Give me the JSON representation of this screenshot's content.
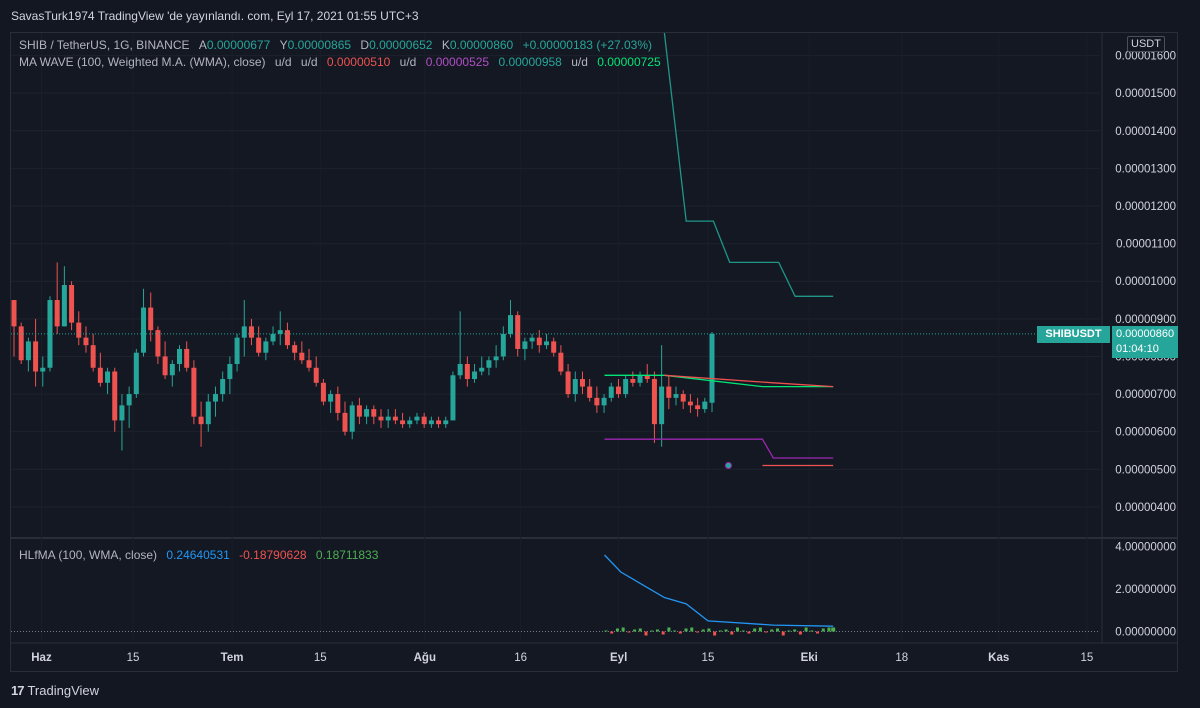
{
  "header": {
    "published": "SavasTurk1974 TradingView 'de yayınlandı. com, Eyl 17, 2021 01:55 UTC+3"
  },
  "legend_main": {
    "symbol": "SHIB / TetherUS, 1G, BINANCE",
    "o_label": "A",
    "o_value": "0.00000677",
    "h_label": "Y",
    "h_value": "0.00000865",
    "l_label": "D",
    "l_value": "0.00000652",
    "c_label": "K",
    "c_value": "0.00000860",
    "change": "+0.00000183 (+27.03%)"
  },
  "legend_ma": {
    "name": "MA WAVE (100, Weighted M.A. (WMA), close)",
    "ud1": "u/d",
    "ud2": "u/d",
    "v1": "0.00000510",
    "ud3": "u/d",
    "v2": "0.00000525",
    "v3": "0.00000958",
    "ud4": "u/d",
    "v4": "0.00000725"
  },
  "legend_hl": {
    "name": "HLfMA (100, WMA, close)",
    "v1": "0.24640531",
    "v2": "-0.18790628",
    "v3": "0.18711833"
  },
  "price_axis": {
    "currency": "USDT",
    "ticks": [
      "0.00001600",
      "0.00001500",
      "0.00001400",
      "0.00001300",
      "0.00001200",
      "0.00001100",
      "0.00001000",
      "0.00000900",
      "0.00000800",
      "0.00000700",
      "0.00000600",
      "0.00000500",
      "0.00000400"
    ]
  },
  "osc_axis": {
    "ticks": [
      "4.00000000",
      "2.00000000",
      "0.00000000"
    ]
  },
  "time_axis": {
    "ticks": [
      "Haz",
      "15",
      "Tem",
      "15",
      "Ağu",
      "16",
      "Eyl",
      "15",
      "Eki",
      "18",
      "Kas",
      "15"
    ]
  },
  "price_tag": {
    "symbol": "SHIBUSDT",
    "price": "0.00000860",
    "countdown": "01:04:10"
  },
  "footer": {
    "brand": "TradingView"
  },
  "colors": {
    "up": "#26a69a",
    "down": "#ef5350",
    "purple": "#9c27b0",
    "teal_line": "#1e9688",
    "green_line": "#00e676",
    "red_line": "#ef5350",
    "blue_line": "#2196f3"
  },
  "chart_data": {
    "type": "candlestick",
    "title": "SHIB / TetherUS, 1G, BINANCE",
    "ylim": [
      3.2e-06,
      1.66e-05
    ],
    "candles": [
      {
        "o": 9.5e-06,
        "h": 9.5e-06,
        "l": 8e-06,
        "c": 8.8e-06
      },
      {
        "o": 8.8e-06,
        "h": 8.9e-06,
        "l": 7.8e-06,
        "c": 7.9e-06
      },
      {
        "o": 7.9e-06,
        "h": 8.5e-06,
        "l": 7.6e-06,
        "c": 8.4e-06
      },
      {
        "o": 8.4e-06,
        "h": 9e-06,
        "l": 7.2e-06,
        "c": 7.6e-06
      },
      {
        "o": 7.6e-06,
        "h": 8e-06,
        "l": 7.2e-06,
        "c": 7.7e-06
      },
      {
        "o": 7.7e-06,
        "h": 9.6e-06,
        "l": 7.6e-06,
        "c": 9.5e-06
      },
      {
        "o": 9.5e-06,
        "h": 1.05e-05,
        "l": 8.6e-06,
        "c": 8.8e-06
      },
      {
        "o": 8.8e-06,
        "h": 1.04e-05,
        "l": 8.8e-06,
        "c": 9.9e-06
      },
      {
        "o": 9.9e-06,
        "h": 1e-05,
        "l": 8.7e-06,
        "c": 8.9e-06
      },
      {
        "o": 8.9e-06,
        "h": 9.2e-06,
        "l": 8.3e-06,
        "c": 8.5e-06
      },
      {
        "o": 8.5e-06,
        "h": 8.8e-06,
        "l": 8.1e-06,
        "c": 8.3e-06
      },
      {
        "o": 8.3e-06,
        "h": 8.6e-06,
        "l": 7.6e-06,
        "c": 7.7e-06
      },
      {
        "o": 7.7e-06,
        "h": 8.1e-06,
        "l": 7.2e-06,
        "c": 7.3e-06
      },
      {
        "o": 7.3e-06,
        "h": 7.7e-06,
        "l": 7e-06,
        "c": 7.6e-06
      },
      {
        "o": 7.6e-06,
        "h": 7.7e-06,
        "l": 6e-06,
        "c": 6.3e-06
      },
      {
        "o": 6.3e-06,
        "h": 7e-06,
        "l": 5.5e-06,
        "c": 6.7e-06
      },
      {
        "o": 6.7e-06,
        "h": 7.2e-06,
        "l": 6.1e-06,
        "c": 7e-06
      },
      {
        "o": 7e-06,
        "h": 8.2e-06,
        "l": 6.9e-06,
        "c": 8.1e-06
      },
      {
        "o": 8.1e-06,
        "h": 9.8e-06,
        "l": 8e-06,
        "c": 9.3e-06
      },
      {
        "o": 9.3e-06,
        "h": 9.7e-06,
        "l": 8.4e-06,
        "c": 8.7e-06
      },
      {
        "o": 8.7e-06,
        "h": 8.8e-06,
        "l": 7.8e-06,
        "c": 8e-06
      },
      {
        "o": 8e-06,
        "h": 8.4e-06,
        "l": 7.4e-06,
        "c": 7.5e-06
      },
      {
        "o": 7.5e-06,
        "h": 7.9e-06,
        "l": 7.2e-06,
        "c": 7.8e-06
      },
      {
        "o": 7.8e-06,
        "h": 8.3e-06,
        "l": 7.6e-06,
        "c": 8.2e-06
      },
      {
        "o": 8.2e-06,
        "h": 8.4e-06,
        "l": 7.6e-06,
        "c": 7.7e-06
      },
      {
        "o": 7.7e-06,
        "h": 7.9e-06,
        "l": 6.2e-06,
        "c": 6.4e-06
      },
      {
        "o": 6.4e-06,
        "h": 6.8e-06,
        "l": 5.6e-06,
        "c": 6.2e-06
      },
      {
        "o": 6.2e-06,
        "h": 7e-06,
        "l": 6e-06,
        "c": 6.8e-06
      },
      {
        "o": 6.8e-06,
        "h": 7.2e-06,
        "l": 6.4e-06,
        "c": 7e-06
      },
      {
        "o": 7e-06,
        "h": 7.6e-06,
        "l": 6.8e-06,
        "c": 7.4e-06
      },
      {
        "o": 7.4e-06,
        "h": 8e-06,
        "l": 7e-06,
        "c": 7.8e-06
      },
      {
        "o": 7.8e-06,
        "h": 8.6e-06,
        "l": 7.6e-06,
        "c": 8.5e-06
      },
      {
        "o": 8.5e-06,
        "h": 9.5e-06,
        "l": 8e-06,
        "c": 8.8e-06
      },
      {
        "o": 8.8e-06,
        "h": 9e-06,
        "l": 8.3e-06,
        "c": 8.5e-06
      },
      {
        "o": 8.5e-06,
        "h": 8.8e-06,
        "l": 8e-06,
        "c": 8.1e-06
      },
      {
        "o": 8.1e-06,
        "h": 8.5e-06,
        "l": 7.9e-06,
        "c": 8.4e-06
      },
      {
        "o": 8.4e-06,
        "h": 8.8e-06,
        "l": 8.3e-06,
        "c": 8.6e-06
      },
      {
        "o": 8.6e-06,
        "h": 9.2e-06,
        "l": 8.3e-06,
        "c": 8.7e-06
      },
      {
        "o": 8.7e-06,
        "h": 8.9e-06,
        "l": 8.2e-06,
        "c": 8.3e-06
      },
      {
        "o": 8.3e-06,
        "h": 8.4e-06,
        "l": 7.9e-06,
        "c": 8.1e-06
      },
      {
        "o": 8.1e-06,
        "h": 8.4e-06,
        "l": 7.8e-06,
        "c": 7.9e-06
      },
      {
        "o": 7.9e-06,
        "h": 8.2e-06,
        "l": 7.6e-06,
        "c": 7.7e-06
      },
      {
        "o": 7.7e-06,
        "h": 8e-06,
        "l": 7.2e-06,
        "c": 7.3e-06
      },
      {
        "o": 7.3e-06,
        "h": 7.4e-06,
        "l": 6.7e-06,
        "c": 6.8e-06
      },
      {
        "o": 6.8e-06,
        "h": 7.1e-06,
        "l": 6.5e-06,
        "c": 7e-06
      },
      {
        "o": 7e-06,
        "h": 7.2e-06,
        "l": 6.3e-06,
        "c": 6.5e-06
      },
      {
        "o": 6.5e-06,
        "h": 6.8e-06,
        "l": 5.9e-06,
        "c": 6e-06
      },
      {
        "o": 6e-06,
        "h": 6.8e-06,
        "l": 5.8e-06,
        "c": 6.7e-06
      },
      {
        "o": 6.7e-06,
        "h": 6.9e-06,
        "l": 6.2e-06,
        "c": 6.4e-06
      },
      {
        "o": 6.4e-06,
        "h": 6.7e-06,
        "l": 6.2e-06,
        "c": 6.6e-06
      },
      {
        "o": 6.6e-06,
        "h": 6.7e-06,
        "l": 6.2e-06,
        "c": 6.4e-06
      },
      {
        "o": 6.4e-06,
        "h": 6.6e-06,
        "l": 6.1e-06,
        "c": 6.3e-06
      },
      {
        "o": 6.3e-06,
        "h": 6.6e-06,
        "l": 6.1e-06,
        "c": 6.4e-06
      },
      {
        "o": 6.4e-06,
        "h": 6.6e-06,
        "l": 6.2e-06,
        "c": 6.3e-06
      },
      {
        "o": 6.3e-06,
        "h": 6.5e-06,
        "l": 6.1e-06,
        "c": 6.2e-06
      },
      {
        "o": 6.2e-06,
        "h": 6.4e-06,
        "l": 6.1e-06,
        "c": 6.3e-06
      },
      {
        "o": 6.3e-06,
        "h": 6.5e-06,
        "l": 6.2e-06,
        "c": 6.4e-06
      },
      {
        "o": 6.4e-06,
        "h": 6.5e-06,
        "l": 6.1e-06,
        "c": 6.2e-06
      },
      {
        "o": 6.2e-06,
        "h": 6.4e-06,
        "l": 6.1e-06,
        "c": 6.3e-06
      },
      {
        "o": 6.3e-06,
        "h": 6.4e-06,
        "l": 6.1e-06,
        "c": 6.2e-06
      },
      {
        "o": 6.2e-06,
        "h": 6.4e-06,
        "l": 6.1e-06,
        "c": 6.3e-06
      },
      {
        "o": 6.3e-06,
        "h": 7.6e-06,
        "l": 6.3e-06,
        "c": 7.5e-06
      },
      {
        "o": 7.5e-06,
        "h": 9.2e-06,
        "l": 7.4e-06,
        "c": 7.8e-06
      },
      {
        "o": 7.8e-06,
        "h": 8e-06,
        "l": 7.2e-06,
        "c": 7.4e-06
      },
      {
        "o": 7.4e-06,
        "h": 7.8e-06,
        "l": 7.3e-06,
        "c": 7.6e-06
      },
      {
        "o": 7.6e-06,
        "h": 8e-06,
        "l": 7.5e-06,
        "c": 7.7e-06
      },
      {
        "o": 7.7e-06,
        "h": 8e-06,
        "l": 7.5e-06,
        "c": 7.9e-06
      },
      {
        "o": 7.9e-06,
        "h": 8.3e-06,
        "l": 7.7e-06,
        "c": 8e-06
      },
      {
        "o": 8e-06,
        "h": 8.8e-06,
        "l": 7.9e-06,
        "c": 8.6e-06
      },
      {
        "o": 8.6e-06,
        "h": 9.5e-06,
        "l": 8.5e-06,
        "c": 9.1e-06
      },
      {
        "o": 9.1e-06,
        "h": 9.2e-06,
        "l": 8e-06,
        "c": 8.2e-06
      },
      {
        "o": 8.2e-06,
        "h": 8.5e-06,
        "l": 7.9e-06,
        "c": 8.4e-06
      },
      {
        "o": 8.4e-06,
        "h": 8.6e-06,
        "l": 8.2e-06,
        "c": 8.5e-06
      },
      {
        "o": 8.5e-06,
        "h": 8.7e-06,
        "l": 8.1e-06,
        "c": 8.3e-06
      },
      {
        "o": 8.3e-06,
        "h": 8.6e-06,
        "l": 8.2e-06,
        "c": 8.4e-06
      },
      {
        "o": 8.4e-06,
        "h": 8.5e-06,
        "l": 8e-06,
        "c": 8.1e-06
      },
      {
        "o": 8.1e-06,
        "h": 8.3e-06,
        "l": 7.5e-06,
        "c": 7.6e-06
      },
      {
        "o": 7.6e-06,
        "h": 7.8e-06,
        "l": 6.9e-06,
        "c": 7e-06
      },
      {
        "o": 7e-06,
        "h": 7.6e-06,
        "l": 6.8e-06,
        "c": 7.4e-06
      },
      {
        "o": 7.4e-06,
        "h": 7.6e-06,
        "l": 7e-06,
        "c": 7.2e-06
      },
      {
        "o": 7.2e-06,
        "h": 7.4e-06,
        "l": 6.8e-06,
        "c": 6.9e-06
      },
      {
        "o": 6.9e-06,
        "h": 7.2e-06,
        "l": 6.5e-06,
        "c": 6.7e-06
      },
      {
        "o": 6.7e-06,
        "h": 7e-06,
        "l": 6.5e-06,
        "c": 6.9e-06
      },
      {
        "o": 6.9e-06,
        "h": 7.3e-06,
        "l": 6.8e-06,
        "c": 7.2e-06
      },
      {
        "o": 7.2e-06,
        "h": 7.4e-06,
        "l": 6.9e-06,
        "c": 7e-06
      },
      {
        "o": 7e-06,
        "h": 7.5e-06,
        "l": 6.9e-06,
        "c": 7.4e-06
      },
      {
        "o": 7.4e-06,
        "h": 7.6e-06,
        "l": 7.2e-06,
        "c": 7.3e-06
      },
      {
        "o": 7.3e-06,
        "h": 7.6e-06,
        "l": 7.2e-06,
        "c": 7.5e-06
      },
      {
        "o": 7.5e-06,
        "h": 7.8e-06,
        "l": 7.3e-06,
        "c": 7.4e-06
      },
      {
        "o": 7.4e-06,
        "h": 7.6e-06,
        "l": 5.7e-06,
        "c": 6.2e-06
      },
      {
        "o": 6.2e-06,
        "h": 8.3e-06,
        "l": 5.6e-06,
        "c": 7.2e-06
      },
      {
        "o": 7.2e-06,
        "h": 7.5e-06,
        "l": 6.6e-06,
        "c": 6.9e-06
      },
      {
        "o": 6.9e-06,
        "h": 7.2e-06,
        "l": 6.7e-06,
        "c": 7e-06
      },
      {
        "o": 7e-06,
        "h": 7.1e-06,
        "l": 6.6e-06,
        "c": 6.8e-06
      },
      {
        "o": 6.8e-06,
        "h": 7e-06,
        "l": 6.5e-06,
        "c": 6.7e-06
      },
      {
        "o": 6.7e-06,
        "h": 6.9e-06,
        "l": 6.4e-06,
        "c": 6.6e-06
      },
      {
        "o": 6.6e-06,
        "h": 6.9e-06,
        "l": 6.5e-06,
        "c": 6.8e-06
      },
      {
        "o": 6.77e-06,
        "h": 8.65e-06,
        "l": 6.52e-06,
        "c": 8.6e-06
      }
    ],
    "ma_lines": [
      {
        "name": "teal",
        "color": "#1e9688",
        "points": [
          [
            0.6,
            1.7e-05
          ],
          [
            0.62,
            1.16e-05
          ],
          [
            0.645,
            1.16e-05
          ],
          [
            0.66,
            1.05e-05
          ],
          [
            0.705,
            1.05e-05
          ],
          [
            0.72,
            9.6e-06
          ],
          [
            0.755,
            9.6e-06
          ]
        ]
      },
      {
        "name": "green",
        "color": "#00e676",
        "points": [
          [
            0.545,
            7.5e-06
          ],
          [
            0.6,
            7.5e-06
          ],
          [
            0.69,
            7.2e-06
          ],
          [
            0.755,
            7.2e-06
          ]
        ]
      },
      {
        "name": "red",
        "color": "#ef5350",
        "points": [
          [
            0.6,
            7.5e-06
          ],
          [
            0.7,
            7.3e-06
          ],
          [
            0.755,
            7.2e-06
          ]
        ]
      },
      {
        "name": "purple",
        "color": "#9c27b0",
        "points": [
          [
            0.545,
            5.8e-06
          ],
          [
            0.69,
            5.8e-06
          ],
          [
            0.7,
            5.3e-06
          ],
          [
            0.755,
            5.3e-06
          ]
        ]
      },
      {
        "name": "red_low",
        "color": "#ef5350",
        "points": [
          [
            0.69,
            5.1e-06
          ],
          [
            0.755,
            5.1e-06
          ]
        ]
      }
    ],
    "osc": {
      "ylim": [
        -0.4,
        4.4
      ],
      "blue": [
        [
          0.545,
          3.6
        ],
        [
          0.56,
          2.8
        ],
        [
          0.58,
          2.2
        ],
        [
          0.6,
          1.6
        ],
        [
          0.62,
          1.3
        ],
        [
          0.64,
          0.5
        ],
        [
          0.7,
          0.3
        ],
        [
          0.755,
          0.25
        ]
      ]
    }
  }
}
